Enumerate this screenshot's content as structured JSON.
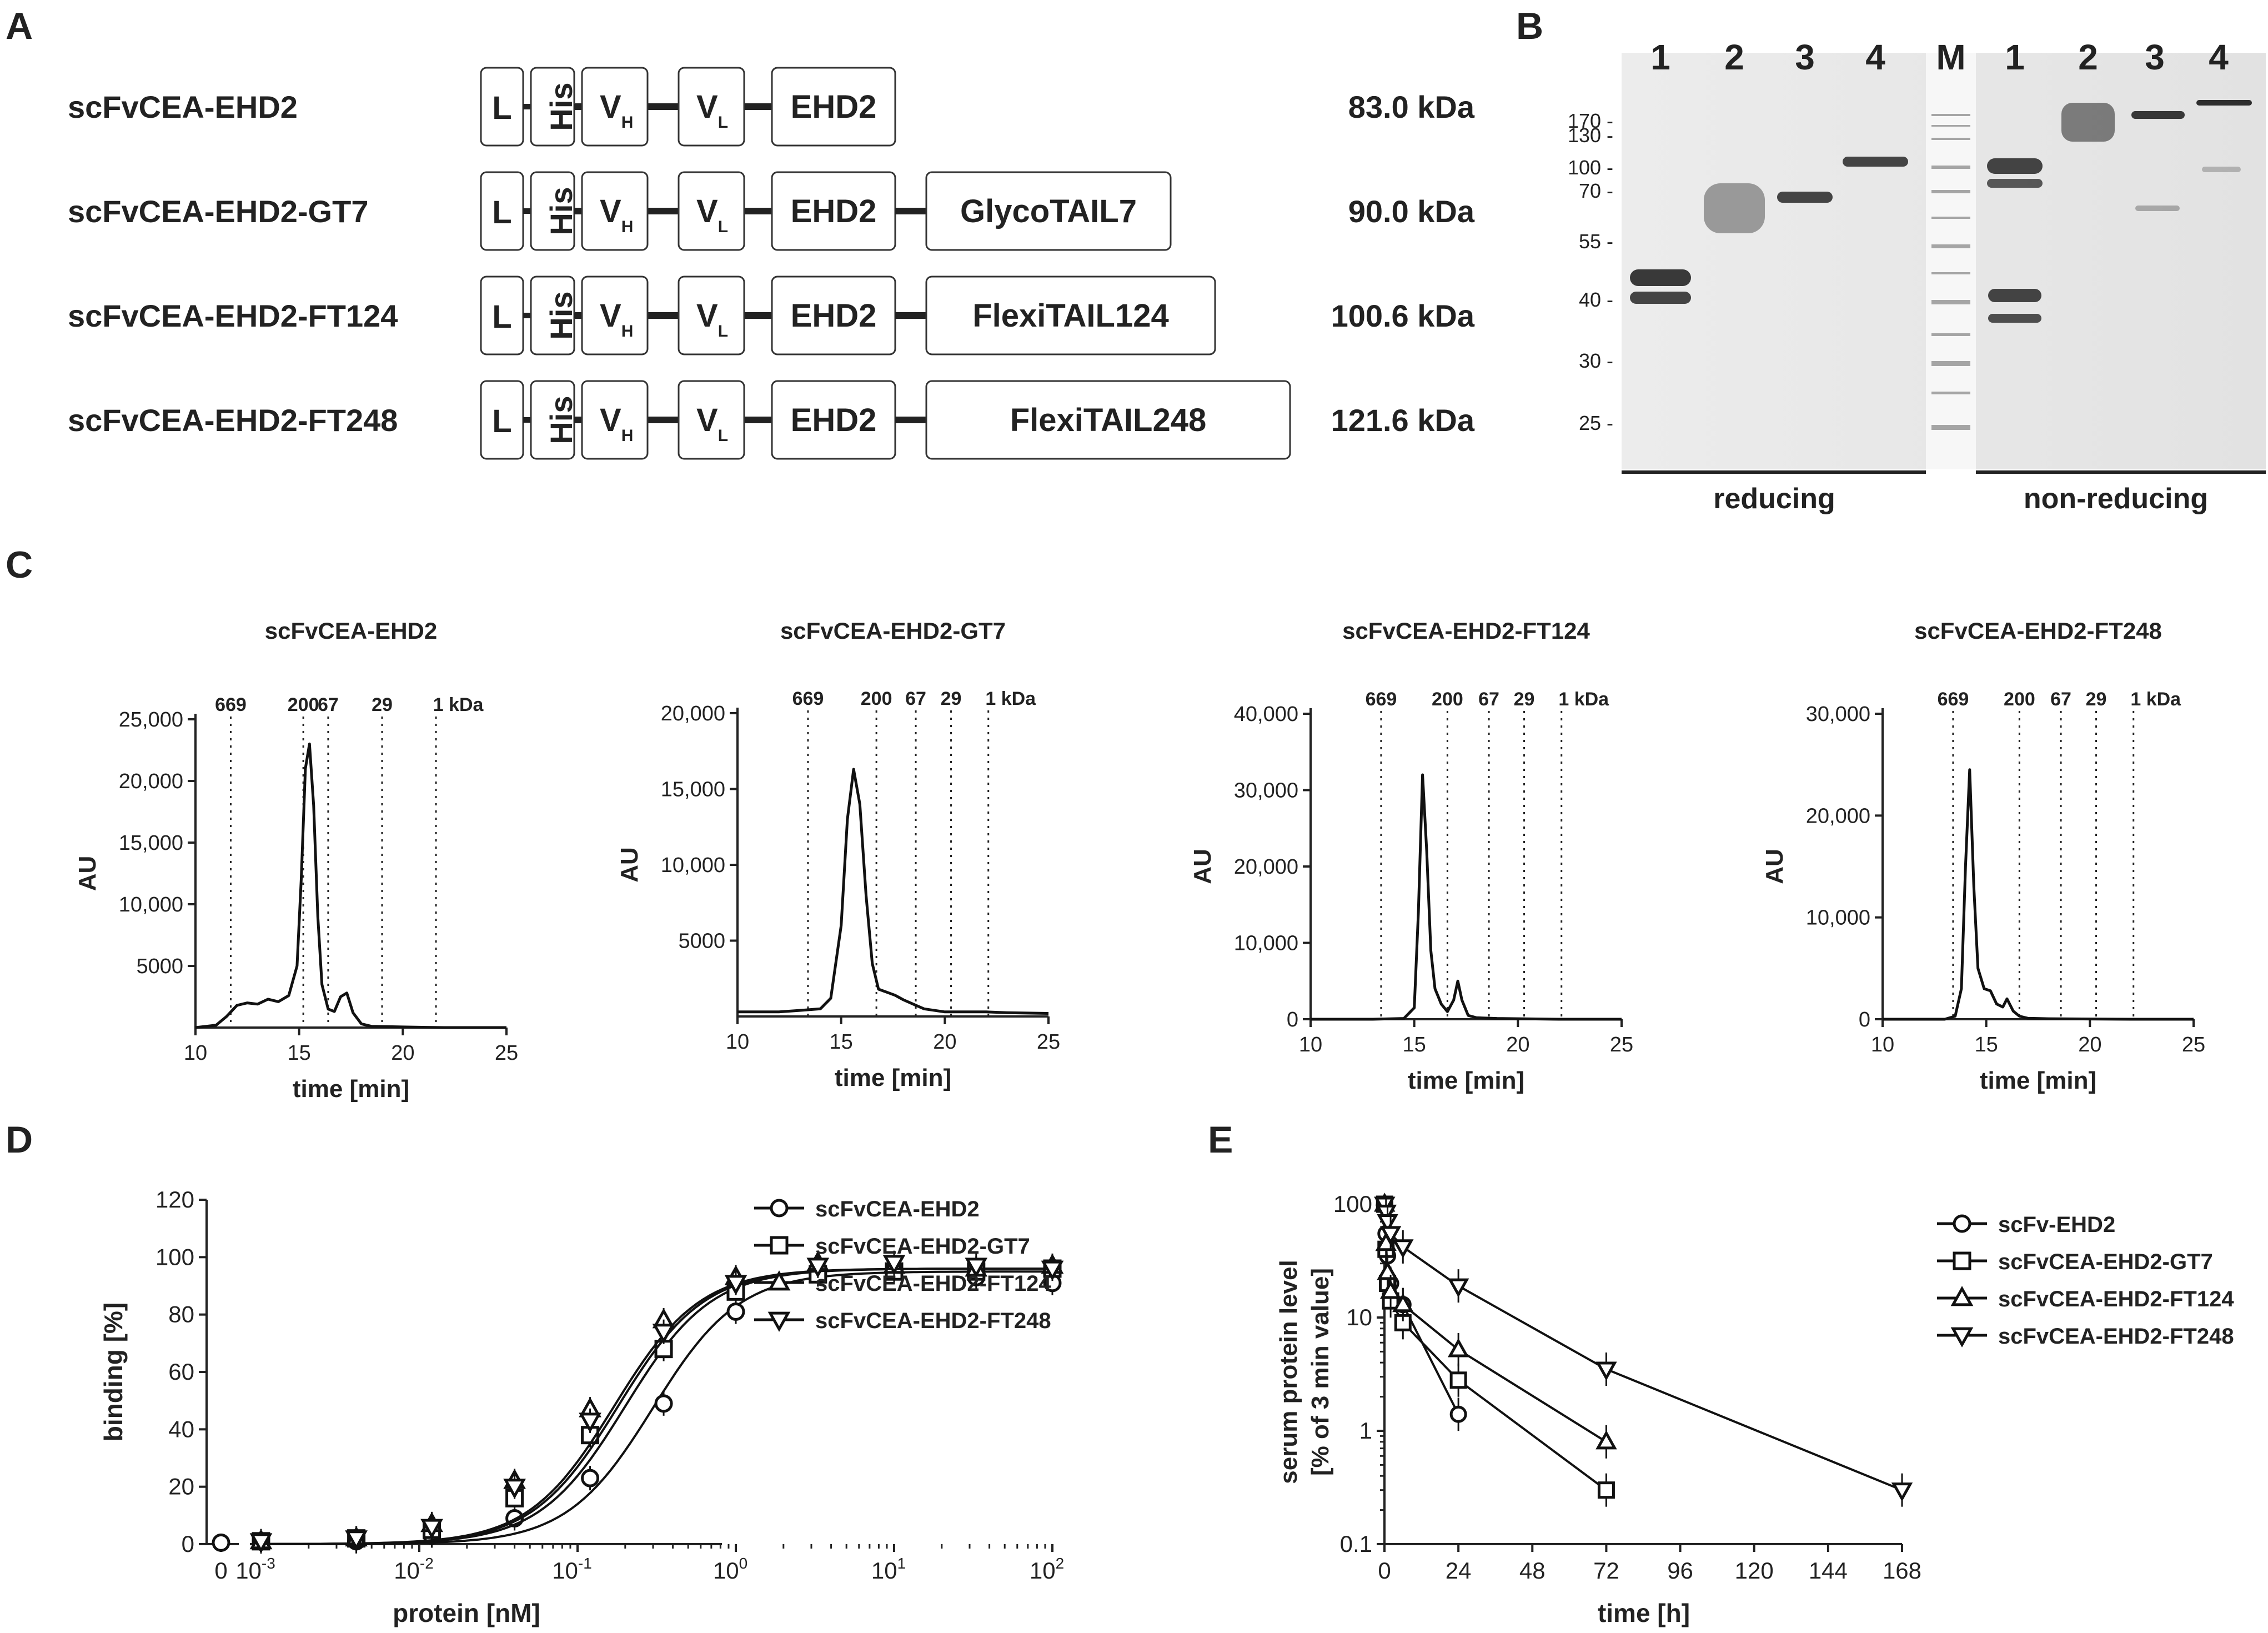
{
  "panel_labels": [
    "A",
    "B",
    "C",
    "D",
    "E"
  ],
  "panel_a": {
    "constructs": [
      {
        "name": "scFvCEA-EHD2",
        "tail": "",
        "mw": "83.0 kDa"
      },
      {
        "name": "scFvCEA-EHD2-GT7",
        "tail": "GlycoTAIL7",
        "mw": "90.0 kDa"
      },
      {
        "name": "scFvCEA-EHD2-FT124",
        "tail": "FlexiTAIL124",
        "mw": "100.6 kDa"
      },
      {
        "name": "scFvCEA-EHD2-FT248",
        "tail": "FlexiTAIL248",
        "mw": "121.6 kDa"
      }
    ],
    "domains": {
      "leader": "L",
      "his": "His",
      "vh": "V",
      "vh_sub": "H",
      "vl": "V",
      "vl_sub": "L",
      "ehd2": "EHD2"
    }
  },
  "panel_b": {
    "lane_labels": [
      "1",
      "2",
      "3",
      "4",
      "M",
      "1",
      "2",
      "3",
      "4"
    ],
    "marker_labels": [
      "170 -",
      "130 -",
      "100 -",
      "70 -",
      "55 -",
      "40 -",
      "30 -",
      "25 -"
    ],
    "reducing_label": "reducing",
    "nonreducing_label": "non-reducing"
  },
  "panel_c": {
    "xlabel": "time [min]",
    "ylabel": "AU",
    "xticks": [
      "10",
      "15",
      "20",
      "25"
    ],
    "charts": [
      {
        "title": "scFvCEA-EHD2",
        "yticks": [
          "5000",
          "10,000",
          "15,000",
          "20,000",
          "25,000"
        ],
        "markers": [
          "669",
          "200",
          "67",
          "29",
          "1 kDa"
        ]
      },
      {
        "title": "scFvCEA-EHD2-GT7",
        "yticks": [
          "5000",
          "10,000",
          "15,000",
          "20,000"
        ],
        "markers": [
          "669",
          "200",
          "67",
          "29",
          "1 kDa"
        ]
      },
      {
        "title": "scFvCEA-EHD2-FT124",
        "yticks": [
          "0",
          "10,000",
          "20,000",
          "30,000",
          "40,000"
        ],
        "markers": [
          "669",
          "200",
          "67",
          "29",
          "1 kDa"
        ]
      },
      {
        "title": "scFvCEA-EHD2-FT248",
        "yticks": [
          "0",
          "10,000",
          "20,000",
          "30,000"
        ],
        "markers": [
          "669",
          "200",
          "67",
          "29",
          "1 kDa"
        ]
      }
    ]
  },
  "panel_d": {
    "xlabel": "protein [nM]",
    "ylabel": "binding [%]",
    "yticks": [
      "0",
      "20",
      "40",
      "60",
      "80",
      "100",
      "120"
    ],
    "xtick_zero": "0",
    "xtick_base": "10",
    "xtick_exps": [
      "-3",
      "-2",
      "-1",
      "0",
      "1",
      "2"
    ],
    "legend": [
      "scFvCEA-EHD2",
      "scFvCEA-EHD2-GT7",
      "scFvCEA-EHD2-FT124",
      "scFvCEA-EHD2-FT248"
    ]
  },
  "panel_e": {
    "xlabel": "time [h]",
    "ylabel_line1": "serum protein level",
    "ylabel_line2": "[% of 3 min value]",
    "yticks": [
      "0.1",
      "1",
      "10",
      "100"
    ],
    "xticks": [
      "0",
      "24",
      "48",
      "72",
      "96",
      "120",
      "144",
      "168"
    ],
    "legend": [
      "scFv-EHD2",
      "scFvCEA-EHD2-GT7",
      "scFvCEA-EHD2-FT124",
      "scFvCEA-EHD2-FT248"
    ]
  },
  "chart_data": [
    {
      "type": "line",
      "title": "scFvCEA-EHD2",
      "xlabel": "time [min]",
      "ylabel": "AU",
      "xlim": [
        10,
        25
      ],
      "ylim": [
        0,
        25000
      ],
      "marker_times": [
        11.7,
        15.2,
        16.4,
        19.0,
        21.6
      ],
      "x": [
        10.0,
        11.0,
        11.5,
        12.0,
        12.5,
        13.0,
        13.5,
        14.0,
        14.5,
        14.9,
        15.1,
        15.3,
        15.5,
        15.7,
        15.9,
        16.1,
        16.4,
        16.7,
        17.0,
        17.3,
        17.6,
        18.0,
        18.5,
        20.0,
        22.0,
        25.0
      ],
      "values": [
        0,
        200,
        900,
        1800,
        2000,
        1900,
        2300,
        2100,
        2600,
        5000,
        12000,
        21000,
        23000,
        18000,
        9000,
        3500,
        1500,
        1300,
        2500,
        2800,
        1200,
        300,
        100,
        50,
        0,
        0
      ]
    },
    {
      "type": "line",
      "title": "scFvCEA-EHD2-GT7",
      "xlabel": "time [min]",
      "ylabel": "AU",
      "xlim": [
        10,
        25
      ],
      "ylim": [
        0,
        20000
      ],
      "marker_times": [
        13.4,
        16.7,
        18.6,
        20.3,
        22.1
      ],
      "x": [
        10.0,
        12.0,
        13.0,
        14.0,
        14.5,
        15.0,
        15.3,
        15.6,
        15.9,
        16.2,
        16.5,
        16.8,
        17.2,
        17.6,
        18.0,
        18.5,
        19.0,
        20.0,
        21.0,
        22.0,
        23.0,
        25.0
      ],
      "values": [
        300,
        300,
        400,
        500,
        1200,
        6000,
        13000,
        16300,
        14000,
        8000,
        3500,
        1800,
        1600,
        1400,
        1100,
        800,
        500,
        300,
        300,
        300,
        250,
        200
      ]
    },
    {
      "type": "line",
      "title": "scFvCEA-EHD2-FT124",
      "xlabel": "time [min]",
      "ylabel": "AU",
      "xlim": [
        10,
        25
      ],
      "ylim": [
        0,
        40000
      ],
      "marker_times": [
        13.4,
        16.6,
        18.6,
        20.3,
        22.1
      ],
      "x": [
        10.0,
        13.0,
        14.5,
        15.0,
        15.2,
        15.4,
        15.6,
        15.8,
        16.0,
        16.3,
        16.6,
        16.9,
        17.1,
        17.3,
        17.6,
        18.0,
        19.0,
        22.0,
        25.0
      ],
      "values": [
        0,
        0,
        100,
        1500,
        14000,
        32000,
        22000,
        9000,
        4000,
        2000,
        1000,
        2500,
        5000,
        2500,
        500,
        200,
        100,
        0,
        0
      ]
    },
    {
      "type": "line",
      "title": "scFvCEA-EHD2-FT248",
      "xlabel": "time [min]",
      "ylabel": "AU",
      "xlim": [
        10,
        25
      ],
      "ylim": [
        0,
        30000
      ],
      "marker_times": [
        13.4,
        16.6,
        18.6,
        20.3,
        22.1
      ],
      "x": [
        10.0,
        13.0,
        13.5,
        13.8,
        14.0,
        14.2,
        14.4,
        14.6,
        14.9,
        15.2,
        15.5,
        15.8,
        16.0,
        16.3,
        16.6,
        17.0,
        18.0,
        22.0,
        25.0
      ],
      "values": [
        0,
        0,
        300,
        3000,
        15000,
        24500,
        13000,
        5000,
        3000,
        2800,
        1500,
        1200,
        2000,
        800,
        300,
        100,
        50,
        0,
        0
      ]
    },
    {
      "type": "scatter",
      "title": "binding",
      "xlabel": "protein [nM]",
      "ylabel": "binding [%]",
      "xscale": "log",
      "ylim": [
        0,
        120
      ],
      "series": [
        {
          "name": "scFvCEA-EHD2",
          "ec50": 0.3,
          "top": 95,
          "hill": 1.6,
          "x": [
            0.001,
            0.004,
            0.012,
            0.04,
            0.12,
            0.35,
            1.0,
            3.3,
            10,
            33,
            100
          ],
          "values": [
            1,
            1,
            3,
            9,
            23,
            49,
            81,
            94,
            96,
            93,
            91
          ]
        },
        {
          "name": "scFvCEA-EHD2-GT7",
          "ec50": 0.2,
          "top": 96,
          "hill": 1.6,
          "x": [
            0.001,
            0.004,
            0.012,
            0.04,
            0.12,
            0.35,
            1.0,
            3.3,
            10,
            33,
            100
          ],
          "values": [
            1,
            2,
            5,
            16,
            38,
            68,
            88,
            94,
            95,
            95,
            96
          ]
        },
        {
          "name": "scFvCEA-EHD2-FT124",
          "ec50": 0.17,
          "top": 96,
          "hill": 1.6,
          "x": [
            0.001,
            0.004,
            0.012,
            0.04,
            0.12,
            0.35,
            1.0,
            3.3,
            10,
            33,
            100
          ],
          "values": [
            1,
            2,
            7,
            22,
            47,
            78,
            93,
            98,
            97,
            96,
            97
          ]
        },
        {
          "name": "scFvCEA-EHD2-FT248",
          "ec50": 0.18,
          "top": 96,
          "hill": 1.6,
          "x": [
            0.001,
            0.004,
            0.012,
            0.04,
            0.12,
            0.35,
            1.0,
            3.3,
            10,
            33,
            100
          ],
          "values": [
            1,
            2,
            6,
            20,
            43,
            74,
            91,
            97,
            98,
            97,
            96
          ]
        }
      ]
    },
    {
      "type": "line",
      "title": "serum protein level",
      "xlabel": "time [h]",
      "ylabel": "serum protein level [% of 3 min value]",
      "yscale": "log",
      "xlim": [
        0,
        168
      ],
      "ylim": [
        0.1,
        100
      ],
      "series": [
        {
          "name": "scFv-EHD2",
          "x": [
            0.05,
            0.5,
            1,
            2,
            6,
            24
          ],
          "values": [
            100,
            55,
            35,
            20,
            13,
            1.4
          ]
        },
        {
          "name": "scFvCEA-EHD2-GT7",
          "x": [
            0.05,
            0.5,
            1,
            2,
            6,
            24,
            72
          ],
          "values": [
            100,
            40,
            20,
            14,
            9,
            2.8,
            0.3
          ]
        },
        {
          "name": "scFvCEA-EHD2-FT124",
          "x": [
            0.05,
            0.5,
            1,
            2,
            6,
            24,
            72
          ],
          "values": [
            100,
            45,
            25,
            17,
            13,
            5.2,
            0.8
          ]
        },
        {
          "name": "scFvCEA-EHD2-FT248",
          "x": [
            0.05,
            0.5,
            1,
            2,
            6,
            24,
            72,
            168
          ],
          "values": [
            100,
            85,
            70,
            55,
            42,
            19,
            3.5,
            0.3
          ]
        }
      ]
    }
  ]
}
